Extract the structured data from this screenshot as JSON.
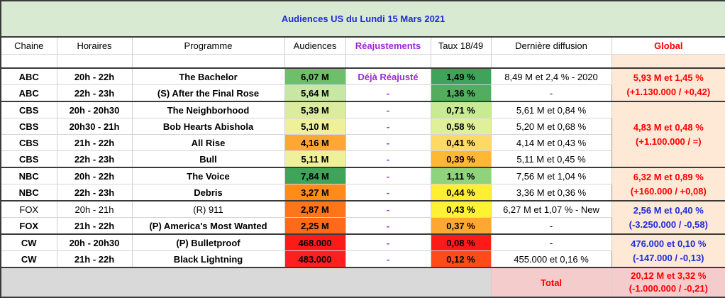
{
  "title": "Audiences US du Lundi 15 Mars 2021",
  "headers": {
    "chaine": "Chaine",
    "horaires": "Horaires",
    "programme": "Programme",
    "audiences": "Audiences",
    "reajustements": "Réajustements",
    "taux": "Taux 18/49",
    "derniere": "Dernière diffusion",
    "global": "Global"
  },
  "colors": {
    "title_bg": "#d9ead3",
    "title_text": "#1f2bd6",
    "reaj_text": "#9c27d6",
    "global_bg": "#fde9d6",
    "total_bg": "#f4cccc",
    "red_text": "#ff0000"
  },
  "rows": [
    {
      "chaine": "ABC",
      "horaires": "20h - 22h",
      "programme": "The Bachelor",
      "audiences": "6,07 M",
      "aud_color": "#6dbf6a",
      "reaj": "Déjà Réajusté",
      "taux": "1,49 %",
      "taux_color": "#3fa35a",
      "derniere": "8,49 M et 2,4 % - 2020",
      "bold": true
    },
    {
      "chaine": "ABC",
      "horaires": "22h - 23h",
      "programme": "(S) After the Final Rose",
      "audiences": "5,64 M",
      "aud_color": "#c6e8a4",
      "reaj": "-",
      "taux": "1,36 %",
      "taux_color": "#52ad5f",
      "derniere": "-",
      "bold": true
    },
    {
      "chaine": "CBS",
      "horaires": "20h - 20h30",
      "programme": "The Neighborhood",
      "audiences": "5,39 M",
      "aud_color": "#dcec9f",
      "reaj": "-",
      "taux": "0,71 %",
      "taux_color": "#c8ea95",
      "derniere": "5,61 M et 0,84 %",
      "bold": true
    },
    {
      "chaine": "CBS",
      "horaires": "20h30 - 21h",
      "programme": "Bob Hearts Abishola",
      "audiences": "5,10 M",
      "aud_color": "#eef19a",
      "reaj": "-",
      "taux": "0,58 %",
      "taux_color": "#e0ef9a",
      "derniere": "5,20 M et 0,68 %",
      "bold": true
    },
    {
      "chaine": "CBS",
      "horaires": "21h - 22h",
      "programme": "All Rise",
      "audiences": "4,16 M",
      "aud_color": "#ffa733",
      "reaj": "-",
      "taux": "0,41 %",
      "taux_color": "#ffd966",
      "derniere": "4,14 M et 0,43 %",
      "bold": true
    },
    {
      "chaine": "CBS",
      "horaires": "22h - 23h",
      "programme": "Bull",
      "audiences": "5,11 M",
      "aud_color": "#eef19a",
      "reaj": "-",
      "taux": "0,39 %",
      "taux_color": "#ffb833",
      "derniere": "5,11 M et 0,45 %",
      "bold": true
    },
    {
      "chaine": "NBC",
      "horaires": "20h - 22h",
      "programme": "The Voice",
      "audiences": "7,84 M",
      "aud_color": "#3fa35a",
      "reaj": "-",
      "taux": "1,11 %",
      "taux_color": "#8fd47d",
      "derniere": "7,56 M et 1,04 %",
      "bold": true
    },
    {
      "chaine": "NBC",
      "horaires": "22h - 23h",
      "programme": "Debris",
      "audiences": "3,27 M",
      "aud_color": "#ff8c1a",
      "reaj": "-",
      "taux": "0,44 %",
      "taux_color": "#ffee33",
      "derniere": "3,36 M et 0,36 %",
      "bold": true
    },
    {
      "chaine": "FOX",
      "horaires": "20h - 21h",
      "programme": "(R) 911",
      "audiences": "2,87 M",
      "aud_color": "#ff7519",
      "reaj": "-",
      "taux": "0,43 %",
      "taux_color": "#fff133",
      "derniere": "6,27 M et 1,07 % - New",
      "bold": false
    },
    {
      "chaine": "FOX",
      "horaires": "21h - 22h",
      "programme": "(P) America's Most Wanted",
      "audiences": "2,25 M",
      "aud_color": "#ff6a1a",
      "reaj": "-",
      "taux": "0,37 %",
      "taux_color": "#ffa733",
      "derniere": "-",
      "bold": true
    },
    {
      "chaine": "CW",
      "horaires": "20h - 20h30",
      "programme": "(P) Bulletproof",
      "audiences": "468.000",
      "aud_color": "#ff1a1a",
      "reaj": "-",
      "taux": "0,08 %",
      "taux_color": "#ff1a1a",
      "derniere": "-",
      "bold": true
    },
    {
      "chaine": "CW",
      "horaires": "21h - 22h",
      "programme": "Black Lightning",
      "audiences": "483.000",
      "aud_color": "#ff1f1f",
      "reaj": "-",
      "taux": "0,12 %",
      "taux_color": "#ff4a1a",
      "derniere": "455.000 et 0,16 %",
      "bold": true
    }
  ],
  "global": [
    {
      "line1": "5,93 M et 1,45 %",
      "line2": "(+1.130.000 / +0,42)",
      "color": "red"
    },
    {
      "line1": "4,83 M et 0,48 %",
      "line2": "(+1.100.000 / =)",
      "color": "red"
    },
    {
      "line1": "6,32 M et 0,89 %",
      "line2": "(+160.000 / +0,08)",
      "color": "red"
    },
    {
      "line1": "2,56 M et 0,40 %",
      "line2": "(-3.250.000 / -0,58)",
      "color": "blue"
    },
    {
      "line1": "476.000 et 0,10 %",
      "line2": "(-147.000 / -0,13)",
      "color": "blue"
    }
  ],
  "total": {
    "label": "Total",
    "line1": "20,12 M et 3,32 %",
    "line2": "(-1.000.000 / -0,21)"
  }
}
